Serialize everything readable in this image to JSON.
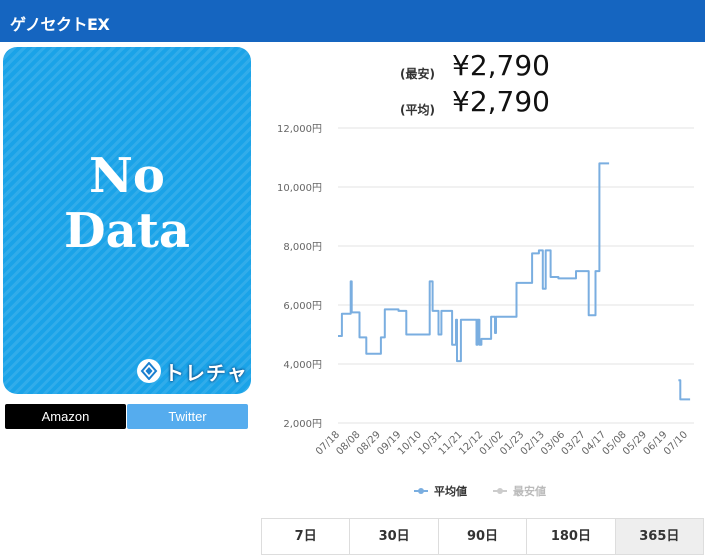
{
  "header": {
    "title": "ゲノセクトEX"
  },
  "image_placeholder": {
    "text": "No\nData",
    "logo_text": "トレチャ"
  },
  "links": {
    "amazon": "Amazon",
    "twitter": "Twitter"
  },
  "prices": {
    "min_label": "(最安)",
    "min_value": "¥2,790",
    "avg_label": "(平均)",
    "avg_value": "¥2,790"
  },
  "colors": {
    "header": "#1565c0",
    "avg_line": "#7aaee0",
    "min_line": "#cccccc",
    "placeholder_bg": "#1aa3e8"
  },
  "chart_data": {
    "type": "line",
    "ylim": [
      2000,
      12000
    ],
    "yticks": [
      "2,000円",
      "4,000円",
      "6,000円",
      "8,000円",
      "10,000円",
      "12,000円"
    ],
    "ytick_values": [
      2000,
      4000,
      6000,
      8000,
      10000,
      12000
    ],
    "x_labels": [
      "07/18",
      "08/08",
      "08/29",
      "09/19",
      "10/10",
      "10/31",
      "11/21",
      "12/12",
      "01/02",
      "01/23",
      "02/13",
      "03/06",
      "03/27",
      "04/17",
      "05/08",
      "05/29",
      "06/19",
      "07/10"
    ],
    "day_span": 365,
    "grid": true,
    "legend_position": "bottom",
    "series": [
      {
        "name": "平均値",
        "color": "#7aaee0",
        "points": [
          [
            0,
            4950
          ],
          [
            4,
            4950
          ],
          [
            4,
            5700
          ],
          [
            13,
            5700
          ],
          [
            13,
            6800
          ],
          [
            14,
            6800
          ],
          [
            14,
            5750
          ],
          [
            22,
            5750
          ],
          [
            22,
            4900
          ],
          [
            29,
            4900
          ],
          [
            29,
            4350
          ],
          [
            44,
            4350
          ],
          [
            44,
            4900
          ],
          [
            48,
            4900
          ],
          [
            48,
            5850
          ],
          [
            62,
            5850
          ],
          [
            62,
            5800
          ],
          [
            70,
            5800
          ],
          [
            70,
            5000
          ],
          [
            94,
            5000
          ],
          [
            94,
            6800
          ],
          [
            97,
            6800
          ],
          [
            97,
            5800
          ],
          [
            103,
            5800
          ],
          [
            103,
            5000
          ],
          [
            106,
            5000
          ],
          [
            106,
            5800
          ],
          [
            117,
            5800
          ],
          [
            117,
            4650
          ],
          [
            121,
            4650
          ],
          [
            121,
            5500
          ],
          [
            122,
            5500
          ],
          [
            122,
            4100
          ],
          [
            126,
            4100
          ],
          [
            126,
            5500
          ],
          [
            142,
            5500
          ],
          [
            142,
            4650
          ],
          [
            143,
            4650
          ],
          [
            143,
            5500
          ],
          [
            145,
            5500
          ],
          [
            145,
            4650
          ],
          [
            147,
            4650
          ],
          [
            147,
            4850
          ],
          [
            157,
            4850
          ],
          [
            157,
            5600
          ],
          [
            161,
            5600
          ],
          [
            161,
            5050
          ],
          [
            162,
            5050
          ],
          [
            162,
            5600
          ],
          [
            183,
            5600
          ],
          [
            183,
            6750
          ],
          [
            199,
            6750
          ],
          [
            199,
            7750
          ],
          [
            206,
            7750
          ],
          [
            206,
            7850
          ],
          [
            210,
            7850
          ],
          [
            210,
            6550
          ],
          [
            213,
            6550
          ],
          [
            213,
            7850
          ],
          [
            218,
            7850
          ],
          [
            218,
            6950
          ],
          [
            226,
            6950
          ],
          [
            226,
            6900
          ],
          [
            244,
            6900
          ],
          [
            244,
            7150
          ],
          [
            257,
            7150
          ],
          [
            257,
            5650
          ],
          [
            264,
            5650
          ],
          [
            264,
            7150
          ],
          [
            268,
            7150
          ],
          [
            268,
            10800
          ],
          [
            278,
            10800
          ]
        ],
        "segment2": [
          [
            349,
            3450
          ],
          [
            351,
            3450
          ],
          [
            351,
            2800
          ],
          [
            361,
            2800
          ]
        ]
      },
      {
        "name": "最安値",
        "color": "#cccccc",
        "points": []
      }
    ]
  },
  "range_buttons": [
    {
      "label": "7日",
      "active": false
    },
    {
      "label": "30日",
      "active": false
    },
    {
      "label": "90日",
      "active": false
    },
    {
      "label": "180日",
      "active": false
    },
    {
      "label": "365日",
      "active": true
    }
  ]
}
